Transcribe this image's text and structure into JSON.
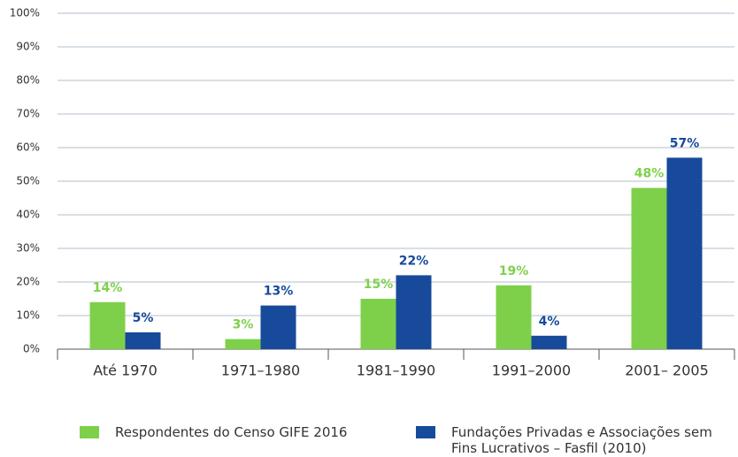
{
  "chart_data": {
    "type": "bar",
    "categories": [
      "Até 1970",
      "1971–1980",
      "1981–1990",
      "1991–2000",
      "2001– 2005"
    ],
    "series": [
      {
        "name": "Respondentes do Censo GIFE 2016",
        "color": "#7ed04a",
        "values": [
          14,
          3,
          15,
          19,
          48
        ],
        "value_labels": [
          "14%",
          "3%",
          "15%",
          "19%",
          "48%"
        ]
      },
      {
        "name": "Fundações Privadas e Associações sem Fins Lucrativos – Fasfil (2010)",
        "color": "#174a9a",
        "values": [
          5,
          13,
          22,
          4,
          57
        ],
        "value_labels": [
          "5%",
          "13%",
          "22%",
          "4%",
          "57%"
        ]
      }
    ],
    "ylim": [
      0,
      100
    ],
    "yticks": [
      {
        "value": 0,
        "label": "0%"
      },
      {
        "value": 10,
        "label": "10%"
      },
      {
        "value": 20,
        "label": "20%"
      },
      {
        "value": 30,
        "label": "30%"
      },
      {
        "value": 40,
        "label": "40%"
      },
      {
        "value": 50,
        "label": "50%"
      },
      {
        "value": 60,
        "label": "60%"
      },
      {
        "value": 70,
        "label": "70%"
      },
      {
        "value": 80,
        "label": "80%"
      },
      {
        "value": 90,
        "label": "90%"
      },
      {
        "value": 100,
        "label": "100%"
      }
    ],
    "grid": true
  }
}
